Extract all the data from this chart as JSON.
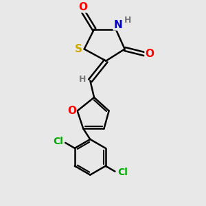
{
  "background_color": "#e8e8e8",
  "bond_color": "#000000",
  "bond_width": 1.8,
  "atom_colors": {
    "O": "#ff0000",
    "N": "#0000cc",
    "S": "#ccaa00",
    "Cl": "#00aa00",
    "H": "#777777",
    "C": "#000000"
  },
  "figsize": [
    3.0,
    3.0
  ],
  "dpi": 100
}
